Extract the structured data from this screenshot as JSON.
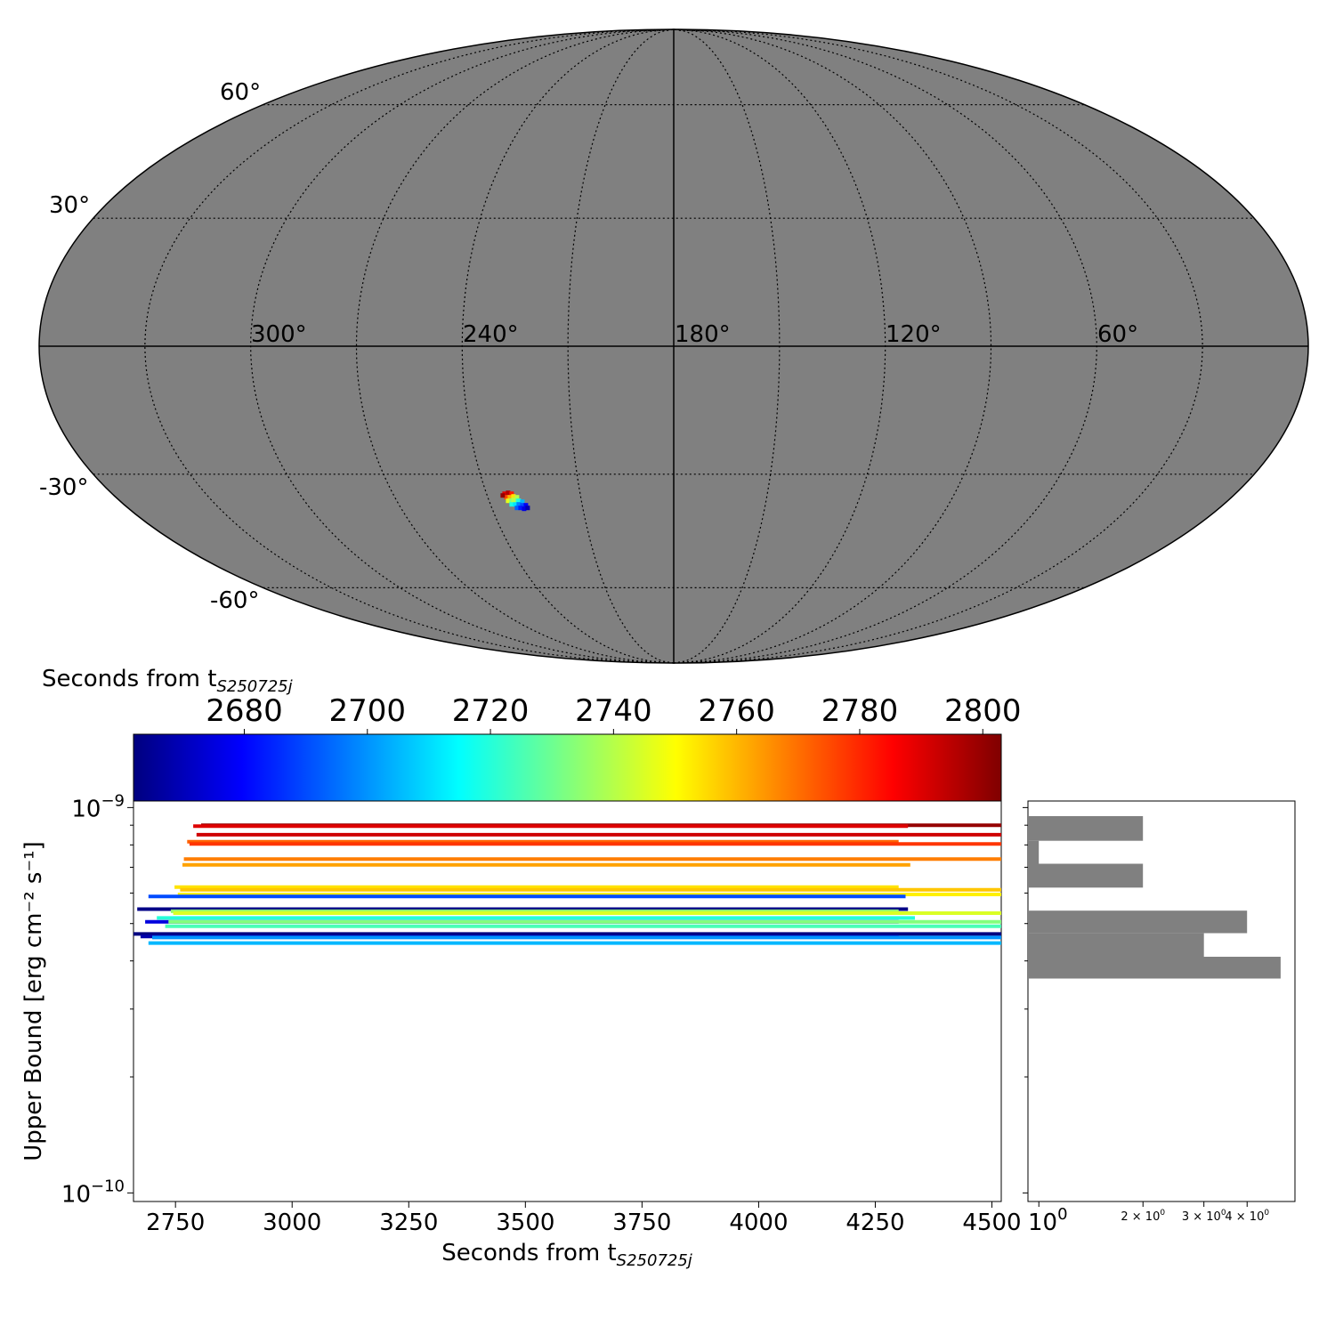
{
  "chart_data": [
    {
      "type": "map",
      "projection": "mollweide",
      "lat_labels": [
        "60°",
        "30°",
        "-30°",
        "-60°"
      ],
      "lon_labels": [
        "300°",
        "240°",
        "180°",
        "120°",
        "60°"
      ],
      "grid": true,
      "background_color": "#808080",
      "region": {
        "ra_center": 232,
        "dec_center": -36,
        "colormap": "jet"
      }
    },
    {
      "type": "colorbar",
      "label_prefix": "Seconds from t",
      "label_subscript": "S250725j",
      "ticks": [
        2680,
        2700,
        2720,
        2740,
        2760,
        2780,
        2800
      ],
      "range": [
        2662,
        2803
      ],
      "colormap": "jet"
    },
    {
      "type": "horizontal-segments",
      "xlabel_prefix": "Seconds from t",
      "xlabel_subscript": "S250725j",
      "ylabel": "Upper Bound [erg cm⁻² s⁻¹]",
      "xlim": [
        2660,
        4520
      ],
      "ylim": [
        9.5e-11,
        1.04e-09
      ],
      "yscale": "log",
      "xticks": [
        "2750",
        "3000",
        "3250",
        "3500",
        "3750",
        "4000",
        "4250",
        "4500"
      ],
      "yticks": [
        {
          "base": "10",
          "exp": "−9",
          "value": 1e-09
        },
        {
          "base": "10",
          "exp": "−10",
          "value": 1e-10
        }
      ],
      "segments": [
        {
          "t": 2800,
          "x0": 2805,
          "x1": 4520,
          "y": 9e-10
        },
        {
          "t": 2790,
          "x0": 2788,
          "x1": 4320,
          "y": 8.95e-10
        },
        {
          "t": 2792,
          "x0": 2795,
          "x1": 4520,
          "y": 8.5e-10
        },
        {
          "t": 2772,
          "x0": 2775,
          "x1": 4300,
          "y": 8.15e-10
        },
        {
          "t": 2778,
          "x0": 2780,
          "x1": 4520,
          "y": 8.05e-10
        },
        {
          "t": 2768,
          "x0": 2768,
          "x1": 4520,
          "y": 7.35e-10
        },
        {
          "t": 2763,
          "x0": 2765,
          "x1": 4325,
          "y": 7.1e-10
        },
        {
          "t": 2754,
          "x0": 2748,
          "x1": 4300,
          "y": 6.22e-10
        },
        {
          "t": 2758,
          "x0": 2760,
          "x1": 4520,
          "y": 6.12e-10
        },
        {
          "t": 2752,
          "x0": 2755,
          "x1": 4520,
          "y": 5.95e-10
        },
        {
          "t": 2690,
          "x0": 2692,
          "x1": 4315,
          "y": 5.88e-10
        },
        {
          "t": 2663,
          "x0": 2668,
          "x1": 4320,
          "y": 5.45e-10
        },
        {
          "t": 2735,
          "x0": 2740,
          "x1": 4300,
          "y": 5.38e-10
        },
        {
          "t": 2745,
          "x0": 2745,
          "x1": 4520,
          "y": 5.32e-10
        },
        {
          "t": 2720,
          "x0": 2710,
          "x1": 4335,
          "y": 5.17e-10
        },
        {
          "t": 2675,
          "x0": 2685,
          "x1": 4300,
          "y": 5.05e-10
        },
        {
          "t": 2733,
          "x0": 2735,
          "x1": 4520,
          "y": 5.05e-10
        },
        {
          "t": 2725,
          "x0": 2728,
          "x1": 4520,
          "y": 4.92e-10
        },
        {
          "t": 2662,
          "x0": 2660,
          "x1": 4520,
          "y": 4.7e-10
        },
        {
          "t": 2668,
          "x0": 2675,
          "x1": 4300,
          "y": 4.63e-10
        },
        {
          "t": 2700,
          "x0": 2700,
          "x1": 4520,
          "y": 4.6e-10
        },
        {
          "t": 2705,
          "x0": 2692,
          "x1": 4520,
          "y": 4.45e-10
        }
      ]
    },
    {
      "type": "bar",
      "orientation": "horizontal",
      "xscale": "log",
      "xticks": [
        {
          "base": "10",
          "exp": "0",
          "value": 1
        },
        {
          "base": "2 × 10",
          "exp": "0",
          "value": 2
        },
        {
          "base": "3 × 10",
          "exp": "0",
          "value": 3
        },
        {
          "base": "4 × 10",
          "exp": "0",
          "value": 4
        }
      ],
      "bins": [
        {
          "y0": 8.2e-10,
          "y1": 9.5e-10,
          "count": 2
        },
        {
          "y0": 7.15e-10,
          "y1": 8.2e-10,
          "count": 1
        },
        {
          "y0": 6.2e-10,
          "y1": 7.15e-10,
          "count": 2
        },
        {
          "y0": 5.4e-10,
          "y1": 6.2e-10,
          "count": 0
        },
        {
          "y0": 4.72e-10,
          "y1": 5.4e-10,
          "count": 4
        },
        {
          "y0": 4.1e-10,
          "y1": 4.72e-10,
          "count": 3
        },
        {
          "y0": 3.6e-10,
          "y1": 4.1e-10,
          "count": 5
        }
      ],
      "color": "#808080"
    }
  ]
}
